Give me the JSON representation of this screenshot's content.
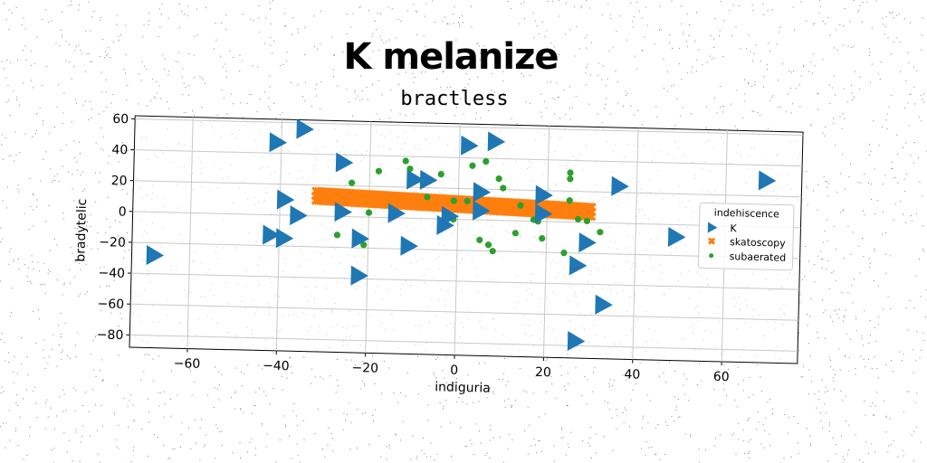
{
  "chart_data": {
    "type": "scatter",
    "title": "K melanize",
    "subtitle": "bractless",
    "xlabel": "indiguria",
    "ylabel": "bradytelic",
    "xlim": [
      -73,
      77
    ],
    "ylim": [
      -88,
      62
    ],
    "xticks": [
      -60,
      -40,
      -20,
      0,
      20,
      40,
      60
    ],
    "yticks": [
      -80,
      -60,
      -40,
      -20,
      0,
      20,
      40,
      60
    ],
    "grid": true,
    "legend": {
      "title": "indehiscence",
      "placement": "center-right",
      "entries": [
        "K",
        "skatoscopy",
        "subaerated"
      ]
    },
    "series": [
      {
        "name": "K",
        "marker": "triangle-right",
        "color": "#1f77b4",
        "points": [
          [
            -68,
            -28
          ],
          [
            -41,
            47
          ],
          [
            -35,
            56
          ],
          [
            -39,
            10
          ],
          [
            -36,
            0
          ],
          [
            -42,
            -13
          ],
          [
            -39,
            -15
          ],
          [
            -26,
            35
          ],
          [
            -26,
            3
          ],
          [
            -22,
            -14
          ],
          [
            -22,
            -38
          ],
          [
            -14,
            3
          ],
          [
            -11,
            -18
          ],
          [
            -10,
            25
          ],
          [
            -7,
            25
          ],
          [
            -3,
            -4
          ],
          [
            -2,
            2
          ],
          [
            2,
            48
          ],
          [
            5,
            6
          ],
          [
            8,
            51
          ],
          [
            5,
            18
          ],
          [
            19,
            17
          ],
          [
            19,
            5
          ],
          [
            27,
            -28
          ],
          [
            27,
            -77
          ],
          [
            29,
            -13
          ],
          [
            33,
            -53
          ],
          [
            36,
            24
          ],
          [
            49,
            -8
          ],
          [
            69,
            30
          ]
        ]
      },
      {
        "name": "skatoscopy",
        "marker": "x",
        "color": "#ff7f0e",
        "line": {
          "from": [
            -32,
            13
          ],
          "to": [
            30,
            7
          ],
          "band": 3
        }
      },
      {
        "name": "subaerated",
        "marker": "circle",
        "color": "#2ca02c",
        "points": [
          [
            -24,
            22
          ],
          [
            -27,
            -12
          ],
          [
            -20,
            3
          ],
          [
            -18,
            30
          ],
          [
            -21,
            -18
          ],
          [
            -12,
            37
          ],
          [
            -11,
            32
          ],
          [
            -4,
            29
          ],
          [
            -7,
            14
          ],
          [
            -1,
            0
          ],
          [
            -1,
            12
          ],
          [
            2,
            12
          ],
          [
            3,
            35
          ],
          [
            6,
            38
          ],
          [
            5,
            -13
          ],
          [
            7,
            -16
          ],
          [
            9,
            27
          ],
          [
            10,
            21
          ],
          [
            8,
            -20
          ],
          [
            13,
            -8
          ],
          [
            14,
            10
          ],
          [
            18,
            0
          ],
          [
            19,
            -11
          ],
          [
            24,
            -20
          ],
          [
            25,
            32
          ],
          [
            25,
            28
          ],
          [
            25,
            14
          ],
          [
            27,
            2
          ],
          [
            29,
            1
          ],
          [
            32,
            -6
          ],
          [
            17,
            1
          ]
        ]
      }
    ]
  }
}
